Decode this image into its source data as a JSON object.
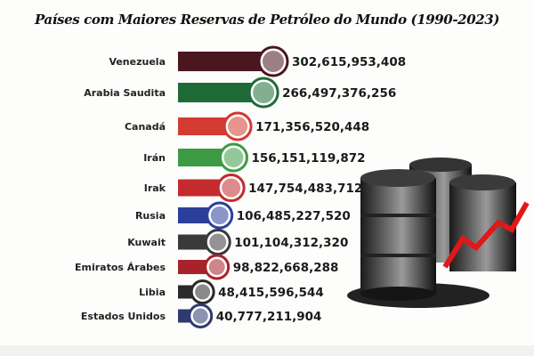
{
  "chart_data": {
    "type": "bar",
    "orientation": "horizontal",
    "title": "Países com Maiores Reservas de Petróleo do Mundo (1990-2023)",
    "categories": [
      "Venezuela",
      "Arabia Saudita",
      "Canadá",
      "Irán",
      "Irak",
      "Rusia",
      "Kuwait",
      "Emiratos Árabes",
      "Libia",
      "Estados Unidos"
    ],
    "values": [
      302615953408,
      266497376256,
      171356520448,
      156151119872,
      147754483712,
      106485227520,
      101104312320,
      98822668288,
      48415596544,
      40777211904
    ],
    "value_labels": [
      "302,615,953,408",
      "266,497,376,256",
      "171,356,520,448",
      "156,151,119,872",
      "147,754,483,712",
      "106,485,227,520",
      "101,104,312,320",
      "98,822,668,288",
      "48,415,596,544",
      "40,777,211,904"
    ],
    "colors": [
      "#4a1620",
      "#1e6b38",
      "#d33a32",
      "#3c9a45",
      "#c42a2e",
      "#2b3f9a",
      "#3a3a3a",
      "#a8222c",
      "#2a2a2a",
      "#2d3a70"
    ],
    "flag_icons": [
      "venezuela-flag",
      "saudi-arabia-flag",
      "canada-flag",
      "iran-flag",
      "iraq-flag",
      "russia-flag",
      "kuwait-flag",
      "uae-flag",
      "libya-flag",
      "usa-flag"
    ]
  }
}
